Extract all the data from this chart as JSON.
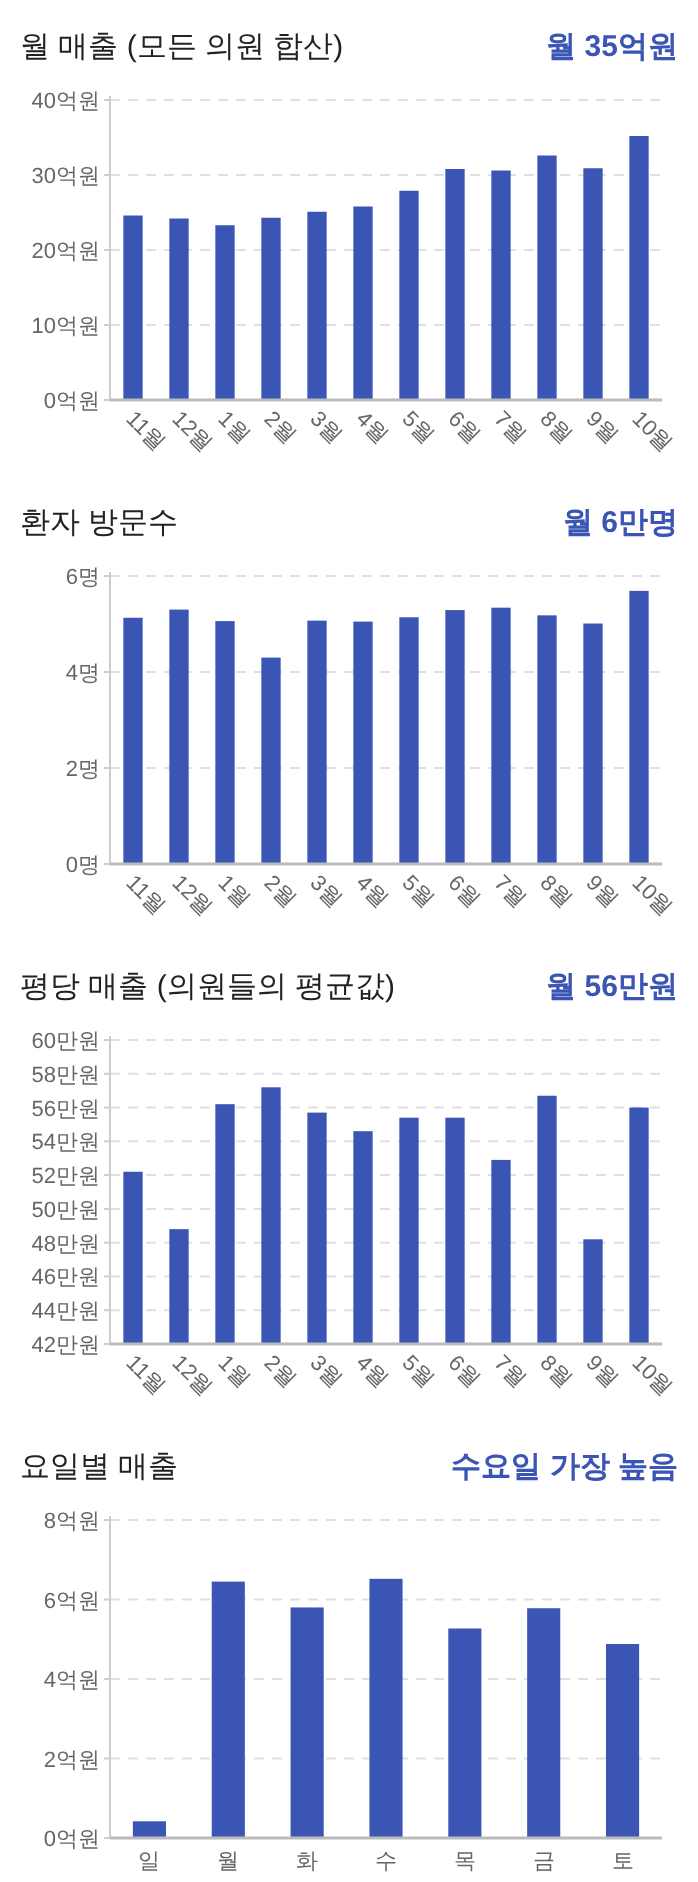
{
  "chart_data": [
    {
      "type": "bar",
      "title": "월 매출 (모든 의원 합산)",
      "subtitle": "월 35억원",
      "categories": [
        "11월",
        "12월",
        "1월",
        "2월",
        "3월",
        "4월",
        "5월",
        "6월",
        "7월",
        "8월",
        "9월",
        "10월"
      ],
      "series": [
        {
          "color": "#3a55b4",
          "values": [
            24.6,
            24.2,
            23.3,
            24.3,
            25.1,
            25.8,
            27.9,
            30.8,
            30.6,
            32.6,
            30.9,
            35.2
          ]
        }
      ],
      "ylim": [
        0,
        40
      ],
      "yticks": [
        {
          "value": 0,
          "label": "0억원"
        },
        {
          "value": 10,
          "label": "10억원"
        },
        {
          "value": 20,
          "label": "20억원"
        },
        {
          "value": 30,
          "label": "30억원"
        },
        {
          "value": 40,
          "label": "40억원"
        }
      ],
      "grid": "y"
    },
    {
      "type": "bar",
      "title": "환자 방문수",
      "subtitle": "월 6만명",
      "categories": [
        "11월",
        "12월",
        "1월",
        "2월",
        "3월",
        "4월",
        "5월",
        "6월",
        "7월",
        "8월",
        "9월",
        "10월"
      ],
      "series": [
        {
          "color": "#3a55b4",
          "values": [
            5.13,
            5.3,
            5.06,
            4.3,
            5.07,
            5.05,
            5.14,
            5.29,
            5.34,
            5.18,
            5.01,
            5.69
          ]
        }
      ],
      "ylim": [
        0,
        6
      ],
      "yticks": [
        {
          "value": 0,
          "label": "0명"
        },
        {
          "value": 2,
          "label": "2명"
        },
        {
          "value": 4,
          "label": "4명"
        },
        {
          "value": 6,
          "label": "6명"
        }
      ],
      "grid": "y"
    },
    {
      "type": "bar",
      "title": "평당 매출 (의원들의 평균값)",
      "subtitle": "월 56만원",
      "categories": [
        "11월",
        "12월",
        "1월",
        "2월",
        "3월",
        "4월",
        "5월",
        "6월",
        "7월",
        "8월",
        "9월",
        "10월"
      ],
      "series": [
        {
          "color": "#3a55b4",
          "values": [
            52.2,
            48.8,
            56.2,
            57.2,
            55.7,
            54.6,
            55.4,
            55.4,
            52.9,
            56.7,
            48.2,
            56.0
          ]
        }
      ],
      "ylim": [
        42,
        60
      ],
      "yticks": [
        {
          "value": 42,
          "label": "42만원"
        },
        {
          "value": 44,
          "label": "44만원"
        },
        {
          "value": 46,
          "label": "46만원"
        },
        {
          "value": 48,
          "label": "48만원"
        },
        {
          "value": 50,
          "label": "50만원"
        },
        {
          "value": 52,
          "label": "52만원"
        },
        {
          "value": 54,
          "label": "54만원"
        },
        {
          "value": 56,
          "label": "56만원"
        },
        {
          "value": 58,
          "label": "58만원"
        },
        {
          "value": 60,
          "label": "60만원"
        }
      ],
      "grid": "y"
    },
    {
      "type": "bar",
      "title": "요일별 매출",
      "subtitle": "수요일 가장 높음",
      "categories": [
        "일",
        "월",
        "화",
        "수",
        "목",
        "금",
        "토"
      ],
      "series": [
        {
          "color": "#3a55b4",
          "values": [
            0.42,
            6.45,
            5.8,
            6.52,
            5.27,
            5.78,
            4.88
          ]
        }
      ],
      "ylim": [
        0,
        8
      ],
      "yticks": [
        {
          "value": 0,
          "label": "0억원"
        },
        {
          "value": 2,
          "label": "2억원"
        },
        {
          "value": 4,
          "label": "4억원"
        },
        {
          "value": 6,
          "label": "6억원"
        },
        {
          "value": 8,
          "label": "8억원"
        }
      ],
      "grid": "y"
    }
  ]
}
